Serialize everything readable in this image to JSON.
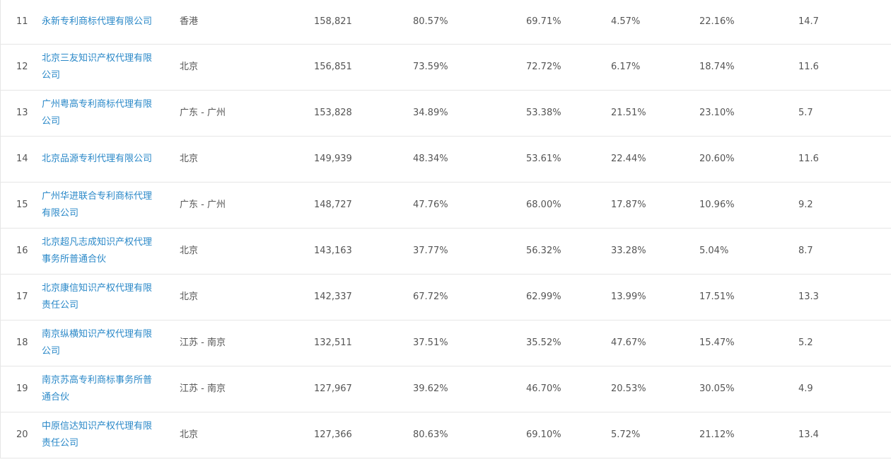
{
  "rows": [
    {
      "rank": "11",
      "name": "永新专利商标代理有限公司",
      "region": "香港",
      "total": "158,821",
      "p1": "80.57%",
      "p2": "69.71%",
      "p3": "4.57%",
      "p4": "22.16%",
      "score": "14.7"
    },
    {
      "rank": "12",
      "name": "北京三友知识产权代理有限公司",
      "region": "北京",
      "total": "156,851",
      "p1": "73.59%",
      "p2": "72.72%",
      "p3": "6.17%",
      "p4": "18.74%",
      "score": "11.6"
    },
    {
      "rank": "13",
      "name": "广州粤高专利商标代理有限公司",
      "region": "广东 - 广州",
      "total": "153,828",
      "p1": "34.89%",
      "p2": "53.38%",
      "p3": "21.51%",
      "p4": "23.10%",
      "score": "5.7"
    },
    {
      "rank": "14",
      "name": "北京品源专利代理有限公司",
      "region": "北京",
      "total": "149,939",
      "p1": "48.34%",
      "p2": "53.61%",
      "p3": "22.44%",
      "p4": "20.60%",
      "score": "11.6"
    },
    {
      "rank": "15",
      "name": "广州华进联合专利商标代理有限公司",
      "region": "广东 - 广州",
      "total": "148,727",
      "p1": "47.76%",
      "p2": "68.00%",
      "p3": "17.87%",
      "p4": "10.96%",
      "score": "9.2"
    },
    {
      "rank": "16",
      "name": "北京超凡志成知识产权代理事务所普通合伙",
      "region": "北京",
      "total": "143,163",
      "p1": "37.77%",
      "p2": "56.32%",
      "p3": "33.28%",
      "p4": "5.04%",
      "score": "8.7"
    },
    {
      "rank": "17",
      "name": "北京康信知识产权代理有限责任公司",
      "region": "北京",
      "total": "142,337",
      "p1": "67.72%",
      "p2": "62.99%",
      "p3": "13.99%",
      "p4": "17.51%",
      "score": "13.3"
    },
    {
      "rank": "18",
      "name": "南京纵横知识产权代理有限公司",
      "region": "江苏 - 南京",
      "total": "132,511",
      "p1": "37.51%",
      "p2": "35.52%",
      "p3": "47.67%",
      "p4": "15.47%",
      "score": "5.2"
    },
    {
      "rank": "19",
      "name": "南京苏高专利商标事务所普通合伙",
      "region": "江苏 - 南京",
      "total": "127,967",
      "p1": "39.62%",
      "p2": "46.70%",
      "p3": "20.53%",
      "p4": "30.05%",
      "score": "4.9"
    },
    {
      "rank": "20",
      "name": "中原信达知识产权代理有限责任公司",
      "region": "北京",
      "total": "127,366",
      "p1": "80.63%",
      "p2": "69.10%",
      "p3": "5.72%",
      "p4": "21.12%",
      "score": "13.4"
    }
  ],
  "colors": {
    "link": "#2a88c8",
    "text": "#555555",
    "border": "#e6e6e6"
  }
}
